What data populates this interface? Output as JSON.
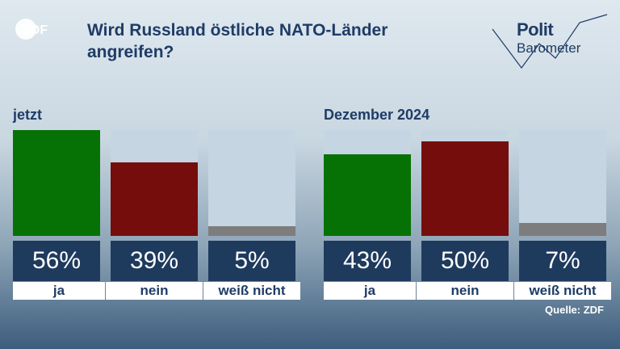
{
  "header": {
    "logo_text": "ZDF",
    "title": "Wird Russland östliche NATO-Länder angreifen?",
    "brand_line1": "Polit",
    "brand_line2": "Barometer"
  },
  "source": "Quelle: ZDF",
  "colors": {
    "ja": "#067206",
    "nein": "#750d0d",
    "weiss_nicht": "#7d7d7d",
    "bar_background": "#c5d5e1",
    "value_box": "#1e3b5e",
    "title": "#1f3c66"
  },
  "chart_data": [
    {
      "type": "bar",
      "title": "jetzt",
      "categories": [
        "ja",
        "nein",
        "weiß nicht"
      ],
      "values": [
        56,
        39,
        5
      ],
      "value_labels": [
        "56%",
        "39%",
        "5%"
      ],
      "ylim": [
        0,
        56
      ]
    },
    {
      "type": "bar",
      "title": "Dezember 2024",
      "categories": [
        "ja",
        "nein",
        "weiß nicht"
      ],
      "values": [
        43,
        50,
        7
      ],
      "value_labels": [
        "43%",
        "50%",
        "7%"
      ],
      "ylim": [
        0,
        56
      ]
    }
  ]
}
